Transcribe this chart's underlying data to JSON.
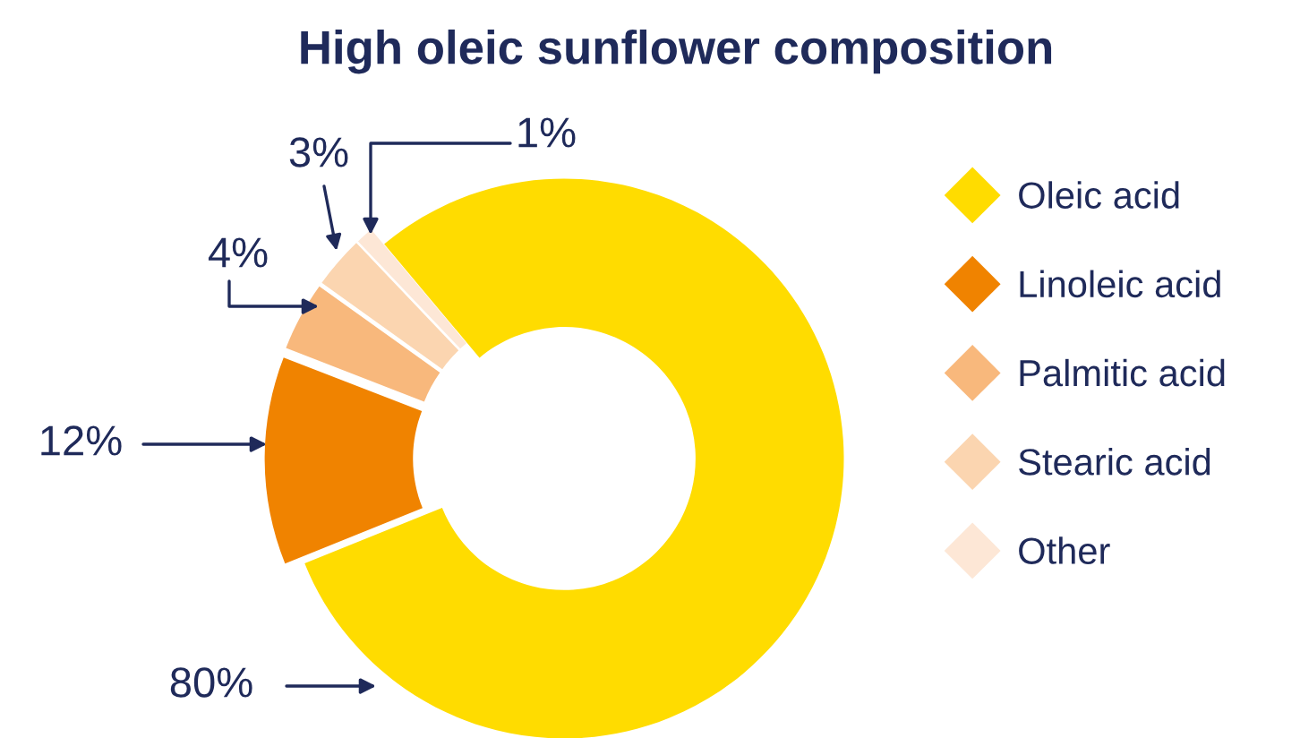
{
  "chart_data": {
    "type": "donut",
    "title": "High oleic sunflower composition",
    "categories": [
      "Oleic acid",
      "Linoleic acid",
      "Palmitic acid",
      "Stearic acid",
      "Other"
    ],
    "values": [
      80,
      12,
      4,
      3,
      1
    ],
    "colors": [
      "#ffdc00",
      "#f08300",
      "#f8b87c",
      "#fbd5b0",
      "#fde7d6"
    ],
    "data_labels": true,
    "value_labels": [
      "80%",
      "12%",
      "4%",
      "3%",
      "1%"
    ],
    "legend": "right",
    "marker": "diamond"
  }
}
